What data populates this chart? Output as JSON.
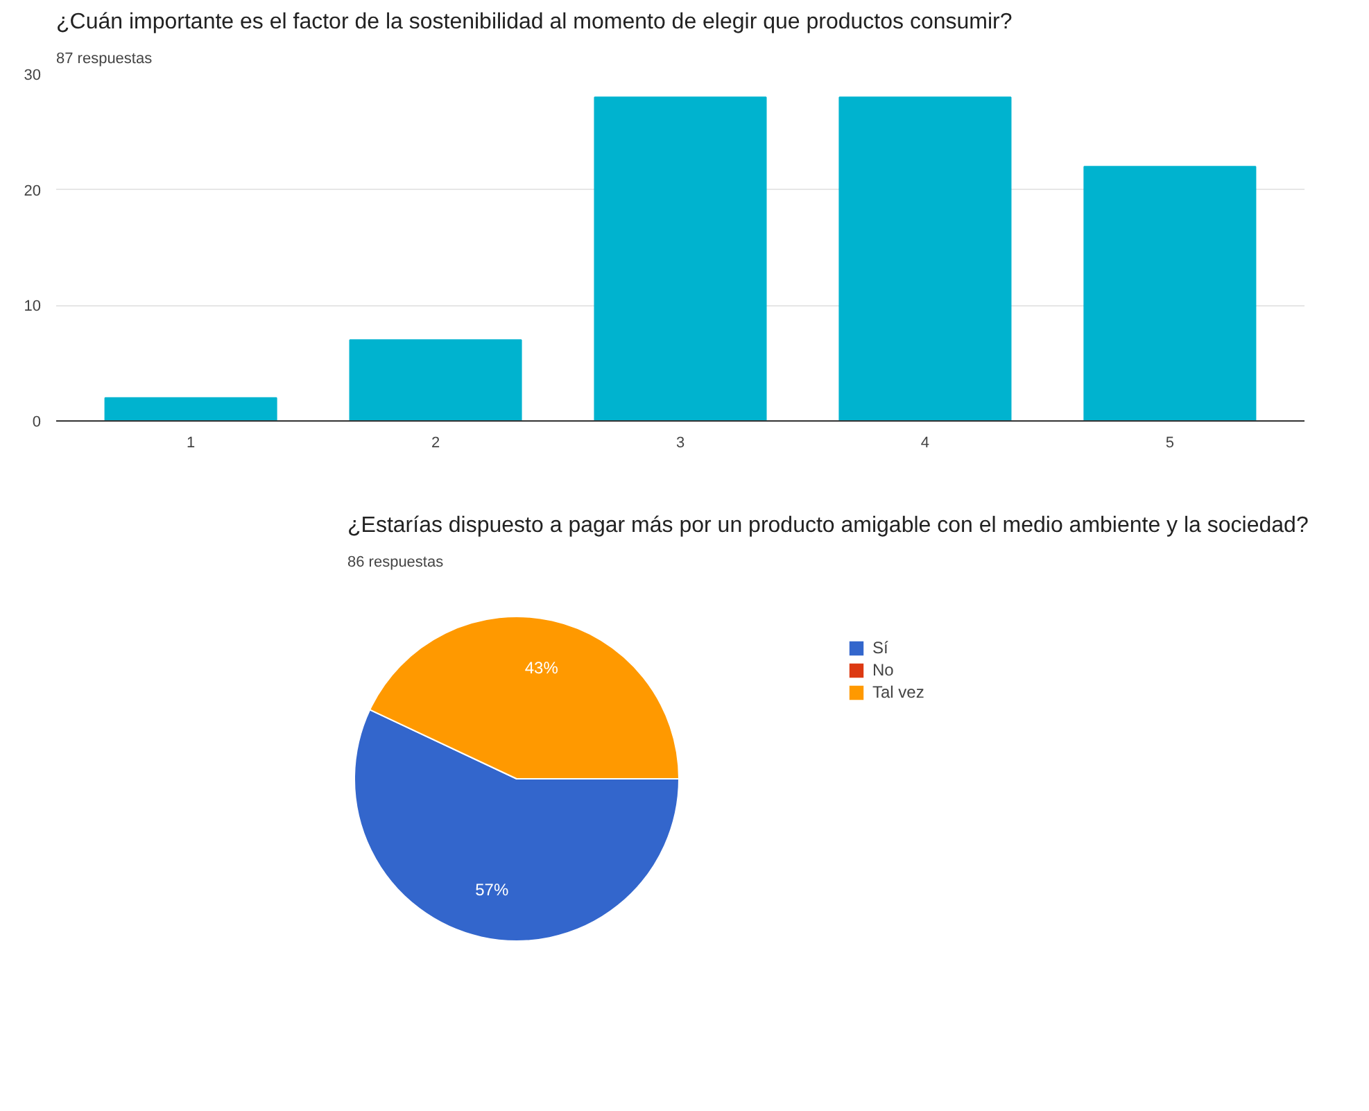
{
  "chart_data": [
    {
      "type": "bar",
      "title": "¿Cuán importante es el factor de la sostenibilidad al momento de elegir que productos consumir?",
      "subtitle": "87 respuestas",
      "categories": [
        "1",
        "2",
        "3",
        "4",
        "5"
      ],
      "values": [
        2,
        7,
        28,
        28,
        22
      ],
      "color": "#00b3cf",
      "ylim": [
        0,
        30
      ],
      "yticks": [
        0,
        10,
        20,
        30
      ],
      "grid": "y"
    },
    {
      "type": "pie",
      "title": "¿Estarías dispuesto a pagar más por un producto amigable con el medio ambiente y la sociedad?",
      "subtitle": "86 respuestas",
      "categories": [
        "Sí",
        "No",
        "Tal vez"
      ],
      "values": [
        57,
        0,
        43
      ],
      "colors": [
        "#3366cc",
        "#dc3912",
        "#ff9900"
      ],
      "value_labels": [
        "57%",
        null,
        "43%"
      ],
      "legend": "right"
    }
  ]
}
